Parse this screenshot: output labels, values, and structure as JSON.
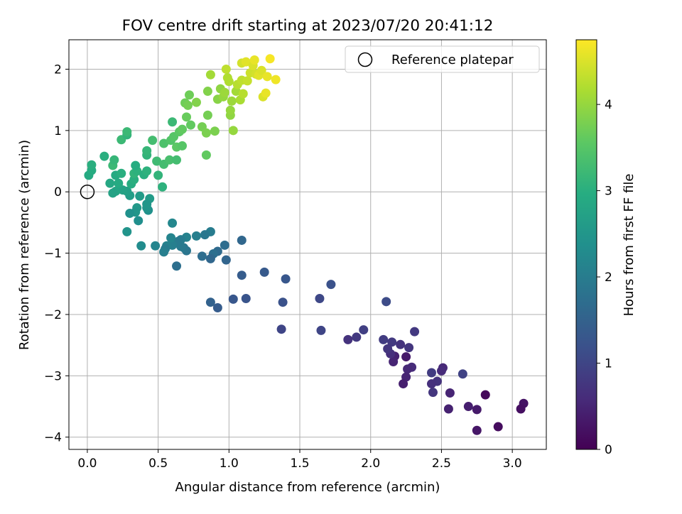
{
  "chart_data": {
    "type": "scatter",
    "title": "FOV centre drift starting at 2023/07/20 20:41:12",
    "xlabel": "Angular distance from reference (arcmin)",
    "ylabel": "Rotation from reference (arcmin)",
    "xlim": [
      -0.13,
      3.24
    ],
    "ylim": [
      -4.2,
      2.48
    ],
    "xticks": [
      0.0,
      0.5,
      1.0,
      1.5,
      2.0,
      2.5,
      3.0
    ],
    "xtick_labels": [
      "0.0",
      "0.5",
      "1.0",
      "1.5",
      "2.0",
      "2.5",
      "3.0"
    ],
    "yticks": [
      -4,
      -3,
      -2,
      -1,
      0,
      1,
      2
    ],
    "ytick_labels": [
      "−4",
      "−3",
      "−2",
      "−1",
      "0",
      "1",
      "2"
    ],
    "grid": true,
    "colormap": "viridis",
    "colorbar": {
      "label": "Hours from first FF file",
      "range": [
        0,
        4.75
      ],
      "ticks": [
        0,
        1,
        2,
        3,
        4
      ],
      "tick_labels": [
        "0",
        "1",
        "2",
        "3",
        "4"
      ]
    },
    "legend": {
      "placement": "top-right",
      "entries": [
        "Reference platepar"
      ]
    },
    "reference_point": {
      "x": 0.0,
      "y": 0.0,
      "label": "Reference platepar"
    },
    "points": [
      {
        "x": 3.08,
        "y": -3.45,
        "t": 0.25
      },
      {
        "x": 3.06,
        "y": -3.54,
        "t": 0.2
      },
      {
        "x": 2.9,
        "y": -3.83,
        "t": 0.15
      },
      {
        "x": 2.81,
        "y": -3.31,
        "t": 0.1
      },
      {
        "x": 2.75,
        "y": -3.89,
        "t": 0.3
      },
      {
        "x": 2.75,
        "y": -3.55,
        "t": 0.35
      },
      {
        "x": 2.69,
        "y": -3.5,
        "t": 0.4
      },
      {
        "x": 2.65,
        "y": -2.97,
        "t": 0.95
      },
      {
        "x": 2.56,
        "y": -3.28,
        "t": 0.5
      },
      {
        "x": 2.55,
        "y": -3.54,
        "t": 0.45
      },
      {
        "x": 2.51,
        "y": -2.87,
        "t": 0.55
      },
      {
        "x": 2.5,
        "y": -2.92,
        "t": 0.6
      },
      {
        "x": 2.47,
        "y": -3.09,
        "t": 0.7
      },
      {
        "x": 2.44,
        "y": -3.27,
        "t": 0.75
      },
      {
        "x": 2.43,
        "y": -3.13,
        "t": 0.65
      },
      {
        "x": 2.43,
        "y": -2.95,
        "t": 0.85
      },
      {
        "x": 2.31,
        "y": -2.28,
        "t": 0.8
      },
      {
        "x": 2.29,
        "y": -2.86,
        "t": 0.6
      },
      {
        "x": 2.27,
        "y": -2.54,
        "t": 0.75
      },
      {
        "x": 2.26,
        "y": -2.89,
        "t": 0.55
      },
      {
        "x": 2.25,
        "y": -3.02,
        "t": 0.5
      },
      {
        "x": 2.25,
        "y": -2.69,
        "t": 0.35
      },
      {
        "x": 2.23,
        "y": -3.13,
        "t": 0.4
      },
      {
        "x": 2.21,
        "y": -2.49,
        "t": 0.7
      },
      {
        "x": 2.17,
        "y": -2.68,
        "t": 0.45
      },
      {
        "x": 2.16,
        "y": -2.77,
        "t": 0.5
      },
      {
        "x": 2.15,
        "y": -2.45,
        "t": 0.8
      },
      {
        "x": 2.14,
        "y": -2.64,
        "t": 0.65
      },
      {
        "x": 2.12,
        "y": -2.56,
        "t": 0.75
      },
      {
        "x": 2.11,
        "y": -1.79,
        "t": 1.1
      },
      {
        "x": 2.09,
        "y": -2.41,
        "t": 0.85
      },
      {
        "x": 1.95,
        "y": -2.25,
        "t": 0.9
      },
      {
        "x": 1.9,
        "y": -2.37,
        "t": 0.8
      },
      {
        "x": 1.84,
        "y": -2.41,
        "t": 0.7
      },
      {
        "x": 1.72,
        "y": -1.51,
        "t": 1.2
      },
      {
        "x": 1.65,
        "y": -2.26,
        "t": 1.0
      },
      {
        "x": 1.64,
        "y": -1.74,
        "t": 1.05
      },
      {
        "x": 1.4,
        "y": -1.42,
        "t": 1.3
      },
      {
        "x": 1.38,
        "y": -1.8,
        "t": 1.2
      },
      {
        "x": 1.37,
        "y": -2.24,
        "t": 1.0
      },
      {
        "x": 1.25,
        "y": -1.31,
        "t": 1.35
      },
      {
        "x": 1.12,
        "y": -1.74,
        "t": 1.25
      },
      {
        "x": 1.09,
        "y": -1.36,
        "t": 1.4
      },
      {
        "x": 1.09,
        "y": -0.79,
        "t": 1.6
      },
      {
        "x": 1.03,
        "y": -1.75,
        "t": 1.3
      },
      {
        "x": 0.98,
        "y": -1.11,
        "t": 1.55
      },
      {
        "x": 0.97,
        "y": -0.87,
        "t": 1.7
      },
      {
        "x": 0.92,
        "y": -1.89,
        "t": 1.4
      },
      {
        "x": 0.92,
        "y": -0.97,
        "t": 1.65
      },
      {
        "x": 0.89,
        "y": -1.01,
        "t": 1.75
      },
      {
        "x": 0.87,
        "y": -1.09,
        "t": 1.6
      },
      {
        "x": 0.87,
        "y": -1.8,
        "t": 1.5
      },
      {
        "x": 0.87,
        "y": -0.65,
        "t": 2.0
      },
      {
        "x": 0.83,
        "y": -0.7,
        "t": 1.9
      },
      {
        "x": 0.81,
        "y": -1.05,
        "t": 1.7
      },
      {
        "x": 0.77,
        "y": -0.72,
        "t": 2.05
      },
      {
        "x": 0.7,
        "y": -0.96,
        "t": 1.85
      },
      {
        "x": 0.7,
        "y": -0.74,
        "t": 2.1
      },
      {
        "x": 0.68,
        "y": -0.91,
        "t": 1.9
      },
      {
        "x": 0.66,
        "y": -0.89,
        "t": 1.95
      },
      {
        "x": 0.66,
        "y": -0.78,
        "t": 2.0
      },
      {
        "x": 0.64,
        "y": -0.81,
        "t": 1.95
      },
      {
        "x": 0.63,
        "y": -1.21,
        "t": 1.75
      },
      {
        "x": 0.6,
        "y": -0.51,
        "t": 2.2
      },
      {
        "x": 0.6,
        "y": -0.87,
        "t": 2.05
      },
      {
        "x": 0.59,
        "y": -0.75,
        "t": 2.15
      },
      {
        "x": 0.56,
        "y": -0.88,
        "t": 2.1
      },
      {
        "x": 0.55,
        "y": -0.93,
        "t": 2.0
      },
      {
        "x": 0.54,
        "y": -0.98,
        "t": 2.05
      },
      {
        "x": 0.48,
        "y": -0.88,
        "t": 2.15
      },
      {
        "x": 0.38,
        "y": -0.88,
        "t": 2.3
      },
      {
        "x": 0.44,
        "y": -0.11,
        "t": 2.6
      },
      {
        "x": 0.43,
        "y": -0.3,
        "t": 2.4
      },
      {
        "x": 0.42,
        "y": -0.26,
        "t": 2.45
      },
      {
        "x": 0.42,
        "y": -0.2,
        "t": 2.5
      },
      {
        "x": 0.37,
        "y": -0.07,
        "t": 2.6
      },
      {
        "x": 0.36,
        "y": -0.47,
        "t": 2.35
      },
      {
        "x": 0.35,
        "y": -0.26,
        "t": 2.55
      },
      {
        "x": 0.34,
        "y": -0.33,
        "t": 2.5
      },
      {
        "x": 0.3,
        "y": -0.35,
        "t": 2.4
      },
      {
        "x": 0.28,
        "y": -0.65,
        "t": 2.45
      },
      {
        "x": 0.3,
        "y": -0.06,
        "t": 2.65
      },
      {
        "x": 0.28,
        "y": 0.01,
        "t": 2.7
      },
      {
        "x": 0.25,
        "y": 0.03,
        "t": 2.75
      },
      {
        "x": 0.2,
        "y": 0.01,
        "t": 2.8
      },
      {
        "x": 0.18,
        "y": -0.02,
        "t": 2.75
      },
      {
        "x": 0.16,
        "y": 0.14,
        "t": 2.85
      },
      {
        "x": 0.22,
        "y": 0.14,
        "t": 2.9
      },
      {
        "x": 0.2,
        "y": 0.27,
        "t": 2.9
      },
      {
        "x": 0.24,
        "y": 0.3,
        "t": 3.0
      },
      {
        "x": 0.31,
        "y": 0.13,
        "t": 2.95
      },
      {
        "x": 0.33,
        "y": 0.2,
        "t": 3.0
      },
      {
        "x": 0.33,
        "y": 0.3,
        "t": 3.1
      },
      {
        "x": 0.35,
        "y": 0.34,
        "t": 3.05
      },
      {
        "x": 0.4,
        "y": 0.28,
        "t": 3.0
      },
      {
        "x": 0.42,
        "y": 0.34,
        "t": 3.05
      },
      {
        "x": 0.34,
        "y": 0.43,
        "t": 2.95
      },
      {
        "x": 0.01,
        "y": 0.27,
        "t": 2.9
      },
      {
        "x": 0.03,
        "y": 0.35,
        "t": 2.95
      },
      {
        "x": 0.03,
        "y": 0.44,
        "t": 3.0
      },
      {
        "x": 0.12,
        "y": 0.58,
        "t": 3.0
      },
      {
        "x": 0.18,
        "y": 0.43,
        "t": 3.2
      },
      {
        "x": 0.19,
        "y": 0.52,
        "t": 3.15
      },
      {
        "x": 0.24,
        "y": 0.85,
        "t": 3.2
      },
      {
        "x": 0.28,
        "y": 0.93,
        "t": 3.1
      },
      {
        "x": 0.28,
        "y": 0.98,
        "t": 3.2
      },
      {
        "x": 0.42,
        "y": 0.6,
        "t": 3.1
      },
      {
        "x": 0.42,
        "y": 0.67,
        "t": 3.15
      },
      {
        "x": 0.46,
        "y": 0.84,
        "t": 3.3
      },
      {
        "x": 0.49,
        "y": 0.5,
        "t": 3.25
      },
      {
        "x": 0.5,
        "y": 0.27,
        "t": 3.1
      },
      {
        "x": 0.53,
        "y": 0.08,
        "t": 3.05
      },
      {
        "x": 0.54,
        "y": 0.45,
        "t": 3.3
      },
      {
        "x": 0.54,
        "y": 0.79,
        "t": 3.4
      },
      {
        "x": 0.58,
        "y": 0.52,
        "t": 3.35
      },
      {
        "x": 0.59,
        "y": 0.84,
        "t": 3.45
      },
      {
        "x": 0.6,
        "y": 1.14,
        "t": 3.2
      },
      {
        "x": 0.61,
        "y": 0.9,
        "t": 3.5
      },
      {
        "x": 0.63,
        "y": 0.73,
        "t": 3.55
      },
      {
        "x": 0.63,
        "y": 0.52,
        "t": 3.3
      },
      {
        "x": 0.65,
        "y": 0.98,
        "t": 3.55
      },
      {
        "x": 0.67,
        "y": 0.75,
        "t": 3.5
      },
      {
        "x": 0.67,
        "y": 1.02,
        "t": 3.6
      },
      {
        "x": 0.69,
        "y": 1.45,
        "t": 3.7
      },
      {
        "x": 0.7,
        "y": 1.22,
        "t": 3.65
      },
      {
        "x": 0.71,
        "y": 1.41,
        "t": 3.75
      },
      {
        "x": 0.72,
        "y": 1.58,
        "t": 3.7
      },
      {
        "x": 0.73,
        "y": 1.09,
        "t": 3.6
      },
      {
        "x": 0.77,
        "y": 1.46,
        "t": 3.85
      },
      {
        "x": 0.81,
        "y": 1.06,
        "t": 3.75
      },
      {
        "x": 0.84,
        "y": 0.96,
        "t": 3.8
      },
      {
        "x": 0.84,
        "y": 0.6,
        "t": 3.6
      },
      {
        "x": 0.85,
        "y": 1.25,
        "t": 3.75
      },
      {
        "x": 0.85,
        "y": 1.64,
        "t": 3.85
      },
      {
        "x": 0.87,
        "y": 1.91,
        "t": 4.1
      },
      {
        "x": 0.9,
        "y": 0.99,
        "t": 3.8
      },
      {
        "x": 0.92,
        "y": 1.51,
        "t": 3.9
      },
      {
        "x": 0.94,
        "y": 1.68,
        "t": 3.95
      },
      {
        "x": 0.96,
        "y": 1.55,
        "t": 4.0
      },
      {
        "x": 0.97,
        "y": 1.62,
        "t": 4.05
      },
      {
        "x": 0.98,
        "y": 2.0,
        "t": 4.3
      },
      {
        "x": 0.99,
        "y": 1.86,
        "t": 4.2
      },
      {
        "x": 1.0,
        "y": 1.8,
        "t": 4.2
      },
      {
        "x": 1.01,
        "y": 1.25,
        "t": 3.95
      },
      {
        "x": 1.01,
        "y": 1.33,
        "t": 4.0
      },
      {
        "x": 1.02,
        "y": 1.48,
        "t": 4.05
      },
      {
        "x": 1.03,
        "y": 1.0,
        "t": 4.0
      },
      {
        "x": 1.05,
        "y": 1.64,
        "t": 4.1
      },
      {
        "x": 1.06,
        "y": 1.75,
        "t": 4.25
      },
      {
        "x": 1.08,
        "y": 1.5,
        "t": 4.15
      },
      {
        "x": 1.09,
        "y": 1.82,
        "t": 4.3
      },
      {
        "x": 1.09,
        "y": 2.1,
        "t": 4.45
      },
      {
        "x": 1.1,
        "y": 1.6,
        "t": 4.25
      },
      {
        "x": 1.12,
        "y": 2.12,
        "t": 4.55
      },
      {
        "x": 1.13,
        "y": 1.81,
        "t": 4.35
      },
      {
        "x": 1.15,
        "y": 1.94,
        "t": 4.4
      },
      {
        "x": 1.17,
        "y": 2.06,
        "t": 4.5
      },
      {
        "x": 1.18,
        "y": 2.15,
        "t": 4.6
      },
      {
        "x": 1.19,
        "y": 1.92,
        "t": 4.45
      },
      {
        "x": 1.21,
        "y": 1.9,
        "t": 4.55
      },
      {
        "x": 1.23,
        "y": 1.98,
        "t": 4.5
      },
      {
        "x": 1.24,
        "y": 1.55,
        "t": 4.5
      },
      {
        "x": 1.26,
        "y": 1.61,
        "t": 4.6
      },
      {
        "x": 1.27,
        "y": 1.88,
        "t": 4.6
      },
      {
        "x": 1.29,
        "y": 2.17,
        "t": 4.7
      },
      {
        "x": 1.33,
        "y": 1.83,
        "t": 4.65
      }
    ]
  }
}
